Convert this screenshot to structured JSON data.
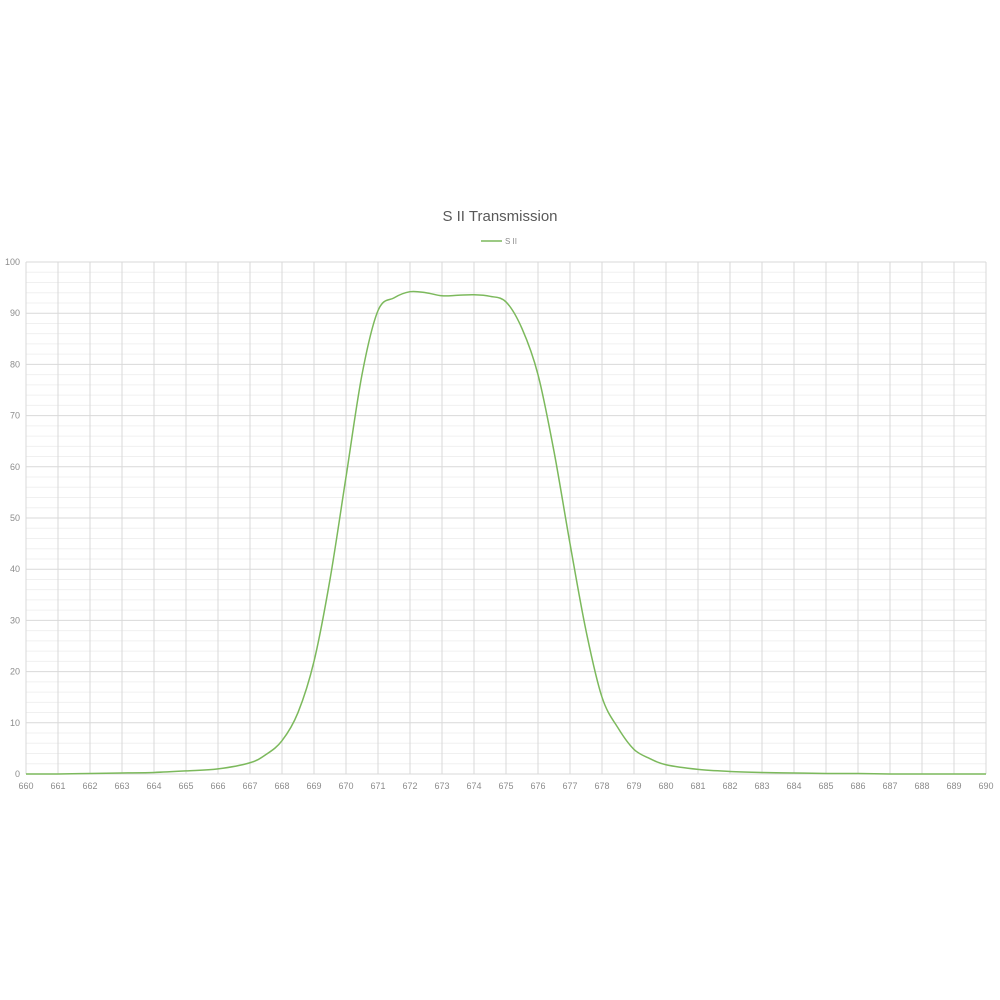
{
  "chart_data": {
    "type": "line",
    "title": "S II Transmission",
    "xlabel": "",
    "ylabel": "",
    "xlim": [
      660,
      690
    ],
    "ylim": [
      0,
      100
    ],
    "x_ticks": [
      660,
      661,
      662,
      663,
      664,
      665,
      666,
      667,
      668,
      669,
      670,
      671,
      672,
      673,
      674,
      675,
      676,
      677,
      678,
      679,
      680,
      681,
      682,
      683,
      684,
      685,
      686,
      687,
      688,
      689,
      690
    ],
    "y_ticks": [
      0,
      10,
      20,
      30,
      40,
      50,
      60,
      70,
      80,
      90,
      100
    ],
    "grid": true,
    "legend_position": "top-center",
    "series": [
      {
        "name": "S II",
        "color": "#7cb95c",
        "x": [
          660,
          661,
          662,
          663,
          664,
          665,
          666,
          667,
          667.5,
          668,
          668.5,
          669,
          669.5,
          670,
          670.5,
          671,
          671.5,
          672,
          672.5,
          673,
          673.5,
          674,
          674.5,
          675,
          675.5,
          676,
          676.5,
          677,
          677.5,
          678,
          678.5,
          679,
          679.5,
          680,
          681,
          682,
          683,
          684,
          685,
          686,
          687,
          688,
          689,
          690
        ],
        "y": [
          0,
          0,
          0.1,
          0.2,
          0.3,
          0.6,
          1.0,
          2.2,
          3.8,
          6.5,
          12,
          22,
          38,
          58,
          78,
          90.5,
          93,
          94.2,
          94,
          93.4,
          93.5,
          93.6,
          93.3,
          92.2,
          87,
          78,
          63,
          45,
          28,
          15,
          9,
          4.8,
          3,
          1.8,
          0.9,
          0.5,
          0.3,
          0.2,
          0.1,
          0.1,
          0,
          0,
          0,
          0
        ]
      }
    ]
  }
}
